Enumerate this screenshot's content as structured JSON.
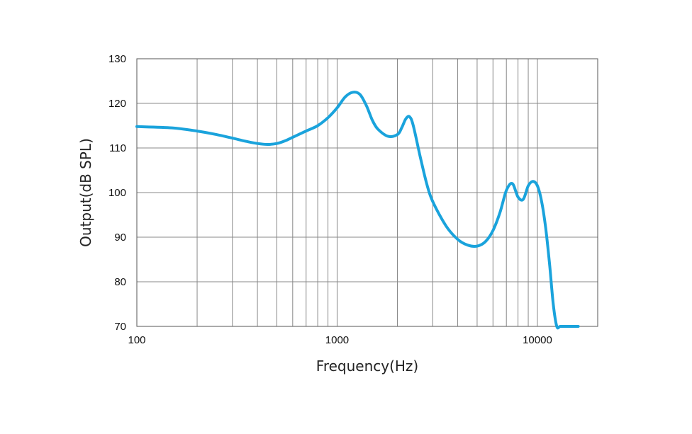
{
  "chart_data": {
    "type": "line",
    "title": "",
    "xlabel": "Frequency(Hz)",
    "ylabel": "Output(dB SPL)",
    "x_scale": "log",
    "xlim": [
      100,
      20000
    ],
    "ylim": [
      70,
      130
    ],
    "x_ticks": [
      100,
      1000,
      10000
    ],
    "x_tick_labels": [
      "100",
      "1000",
      "10000"
    ],
    "y_ticks": [
      70,
      80,
      90,
      100,
      110,
      120,
      130
    ],
    "y_tick_labels": [
      "70",
      "80",
      "90",
      "100",
      "110",
      "120",
      "130"
    ],
    "grid": true,
    "legend": "none",
    "line_color": "#1aa3dc",
    "series": [
      {
        "x": [
          100,
          150,
          200,
          250,
          300,
          350,
          400,
          450,
          500,
          550,
          600,
          700,
          800,
          900,
          1000,
          1100,
          1200,
          1300,
          1400,
          1500,
          1600,
          1800,
          2000,
          2100,
          2200,
          2300,
          2400,
          2600,
          2800,
          3000,
          3500,
          4000,
          4500,
          5000,
          5500,
          6000,
          6500,
          7000,
          7500,
          8000,
          8500,
          9000,
          9500,
          10000,
          10500,
          11000,
          11500,
          12000,
          12500,
          13000,
          14000,
          15000,
          16000
        ],
        "y": [
          114.8,
          114.5,
          113.8,
          113.0,
          112.2,
          111.5,
          111.0,
          110.8,
          111.0,
          111.6,
          112.4,
          113.8,
          115.0,
          116.8,
          119.0,
          121.5,
          122.5,
          122.0,
          119.5,
          116.2,
          114.2,
          112.6,
          113.0,
          114.5,
          116.5,
          117.0,
          115.0,
          108.0,
          102.0,
          98.0,
          92.5,
          89.5,
          88.2,
          88.0,
          89.0,
          91.5,
          95.5,
          100.5,
          102.0,
          99.0,
          98.5,
          101.5,
          102.5,
          101.5,
          98.0,
          92.0,
          84.0,
          75.0,
          70.0,
          70.0,
          70.0,
          70.0,
          70.0
        ]
      }
    ]
  }
}
